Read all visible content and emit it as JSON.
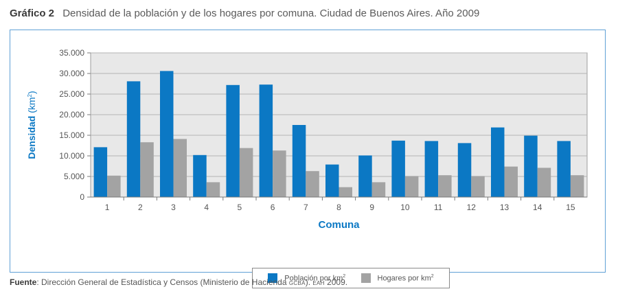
{
  "header": {
    "number": "Gráfico 2",
    "title": "Densidad de la población y de los hogares por comuna. Ciudad de Buenos Aires. Año 2009"
  },
  "footer": {
    "label": "Fuente",
    "text_1": ": Dirección General de Estadística y Censos (Ministerio de Hacienda ",
    "abbr_1": "GCBA",
    "text_2": "). ",
    "abbr_2": "EAH",
    "text_3": " 2009."
  },
  "chart_data": {
    "type": "bar",
    "title": "",
    "xlabel": "Comuna",
    "ylabel": "Densidad",
    "ylabel_unit": "(km",
    "ylabel_unit_sup": "2",
    "ylabel_unit_close": ")",
    "ylim": [
      0,
      35000
    ],
    "yticks": [
      0,
      5000,
      10000,
      15000,
      20000,
      25000,
      30000,
      35000
    ],
    "ytick_labels": [
      "0",
      "5.000",
      "10.000",
      "15.000",
      "20.000",
      "25.000",
      "30.000",
      "35.000"
    ],
    "grid": true,
    "legend_position": "bottom-center",
    "categories": [
      "1",
      "2",
      "3",
      "4",
      "5",
      "6",
      "7",
      "8",
      "9",
      "10",
      "11",
      "12",
      "13",
      "14",
      "15"
    ],
    "series": [
      {
        "name": "Población por km",
        "name_sup": "2",
        "color": "#0b78c4",
        "values": [
          12100,
          28100,
          30600,
          10200,
          27200,
          27300,
          17500,
          7900,
          10100,
          13700,
          13600,
          13100,
          16900,
          14900,
          13600
        ]
      },
      {
        "name": "Hogares por km",
        "name_sup": "2",
        "color": "#a3a3a3",
        "values": [
          5200,
          13300,
          14100,
          3600,
          11900,
          11300,
          6300,
          2400,
          3600,
          5100,
          5300,
          5100,
          7400,
          7100,
          5300
        ]
      }
    ],
    "colors": {
      "plot_background": "#e8e8e8",
      "gridline": "#b3b3b3",
      "axis_title": "#0b78c4",
      "frame_border": "#5fa0d6"
    }
  }
}
